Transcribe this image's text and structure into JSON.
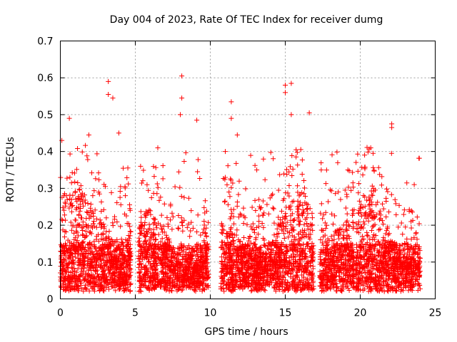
{
  "chart_data": {
    "type": "scatter",
    "title": "Day 004 of 2023, Rate Of TEC Index for receiver dumg",
    "xlabel": "GPS time / hours",
    "ylabel": "ROTI / TECUs",
    "xlim": [
      0,
      25
    ],
    "ylim": [
      0,
      0.7
    ],
    "x_ticks": [
      "0",
      "5",
      "10",
      "15",
      "20",
      "25"
    ],
    "y_ticks": [
      "0",
      "0.1",
      "0.2",
      "0.3",
      "0.4",
      "0.5",
      "0.6",
      "0.7"
    ],
    "grid": true,
    "marker": "+",
    "color": "#ff0000",
    "observation_windows_hours": [
      [
        0.0,
        4.7
      ],
      [
        5.2,
        9.9
      ],
      [
        10.7,
        16.9
      ],
      [
        17.3,
        19.6
      ],
      [
        19.7,
        24.0
      ]
    ],
    "notable_points": [
      {
        "x": 0.6,
        "y": 0.49
      },
      {
        "x": 3.2,
        "y": 0.59
      },
      {
        "x": 3.2,
        "y": 0.555
      },
      {
        "x": 3.5,
        "y": 0.545
      },
      {
        "x": 8.1,
        "y": 0.605
      },
      {
        "x": 8.1,
        "y": 0.545
      },
      {
        "x": 8.0,
        "y": 0.5
      },
      {
        "x": 9.1,
        "y": 0.485
      },
      {
        "x": 11.4,
        "y": 0.535
      },
      {
        "x": 11.4,
        "y": 0.49
      },
      {
        "x": 11.8,
        "y": 0.445
      },
      {
        "x": 15.0,
        "y": 0.58
      },
      {
        "x": 15.0,
        "y": 0.56
      },
      {
        "x": 15.4,
        "y": 0.585
      },
      {
        "x": 15.4,
        "y": 0.5
      },
      {
        "x": 16.6,
        "y": 0.505
      },
      {
        "x": 22.1,
        "y": 0.475
      },
      {
        "x": 22.1,
        "y": 0.465
      },
      {
        "x": 1.9,
        "y": 0.445
      },
      {
        "x": 3.9,
        "y": 0.45
      },
      {
        "x": 0.1,
        "y": 0.43
      },
      {
        "x": 13.1,
        "y": 0.35
      },
      {
        "x": 17.4,
        "y": 0.35
      },
      {
        "x": 23.6,
        "y": 0.31
      },
      {
        "x": 24.0,
        "y": 0.11
      },
      {
        "x": 11.0,
        "y": 0.4
      },
      {
        "x": 20.7,
        "y": 0.41
      },
      {
        "x": 6.5,
        "y": 0.41
      }
    ]
  }
}
